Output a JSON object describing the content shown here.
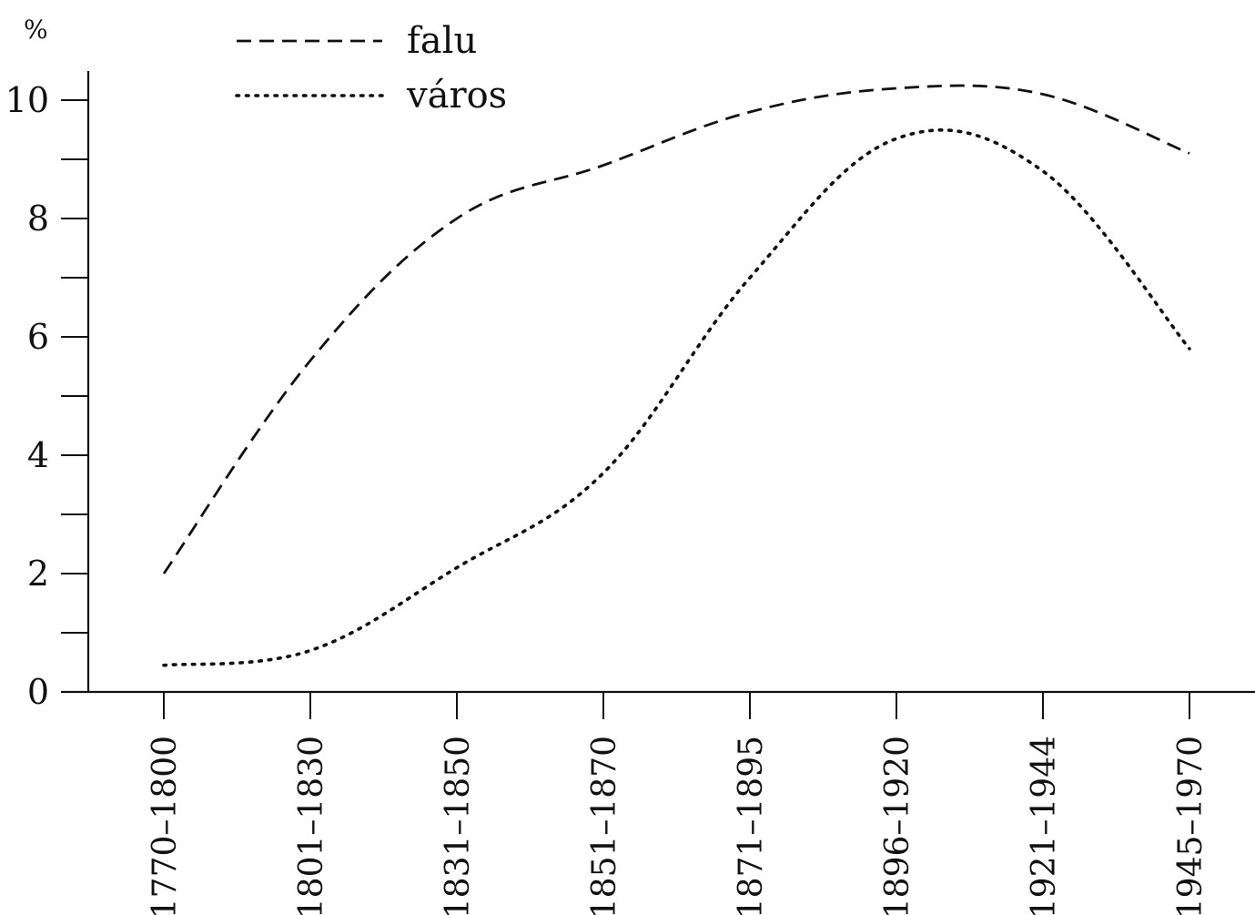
{
  "chart_data": {
    "type": "line",
    "title": "",
    "xlabel": "",
    "ylabel": "%",
    "categories": [
      "1770–1800",
      "1801–1830",
      "1831–1850",
      "1851–1870",
      "1871–1895",
      "1896–1920",
      "1921–1944",
      "1945–1970"
    ],
    "series": [
      {
        "name": "falu",
        "style": "dashed",
        "color": "#111111",
        "values": [
          2.0,
          5.6,
          8.0,
          8.9,
          9.8,
          10.2,
          10.1,
          9.1
        ]
      },
      {
        "name": "város",
        "style": "dotted",
        "color": "#111111",
        "values": [
          0.45,
          0.7,
          2.1,
          3.7,
          7.0,
          9.35,
          8.8,
          5.8
        ]
      }
    ],
    "ylim": [
      0,
      10.5
    ],
    "yticks": [
      0,
      2,
      4,
      6,
      8,
      10
    ],
    "yminor_ticks": [
      1,
      3,
      5,
      7,
      9
    ],
    "grid": false,
    "legend_position": "top-left"
  }
}
